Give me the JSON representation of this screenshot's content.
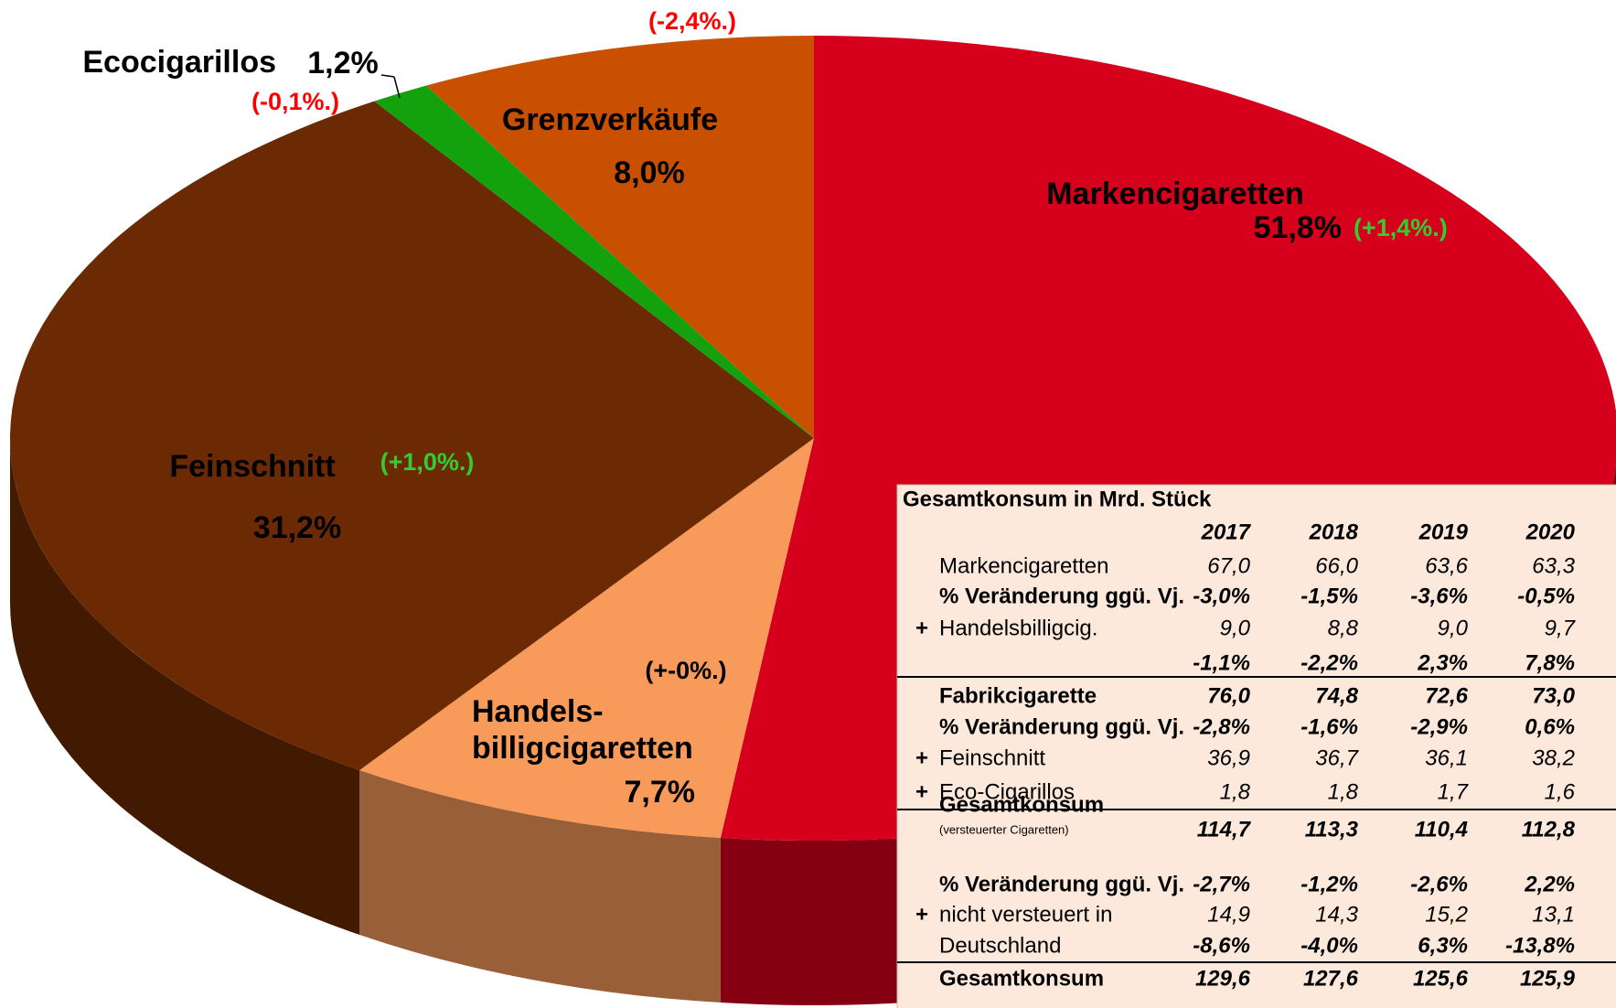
{
  "chart_data": {
    "type": "pie",
    "categories": [
      "Markencigaretten",
      "Handels-\nbilligcigaretten",
      "Feinschnitt",
      "Ecocigarillos",
      "Grenzverkäufe"
    ],
    "values": [
      51.8,
      7.7,
      31.2,
      1.2,
      8.0
    ],
    "value_labels": [
      "51,8%",
      "7,7%",
      "31,2%",
      "1,2%",
      "8,0%"
    ],
    "changes": [
      "(+1,4%.)",
      "(+-0%.)",
      "(+1,0%.)",
      "(-0,1%.)",
      "(-2,4%.)"
    ],
    "change_colors": [
      "#33cc33",
      "#000000",
      "#33cc33",
      "#ff0000",
      "#ff0000"
    ],
    "colors": [
      "#d6001c",
      "#f79a5a",
      "#6b2a03",
      "#13a10e",
      "#c85000"
    ]
  },
  "table": {
    "title": "Gesamtkonsum in Mrd. Stück",
    "years": [
      "2017",
      "2018",
      "2019",
      "2020"
    ],
    "rows": [
      {
        "label": "Markencigaretten",
        "values": [
          "67,0",
          "66,0",
          "63,6",
          "63,3"
        ]
      },
      {
        "label": "% Veränderung ggü. Vj.",
        "caption": true,
        "pct": true,
        "values": [
          "-3,0%",
          "-1,5%",
          "-3,6%",
          "-0,5%"
        ]
      },
      {
        "prefix": "+",
        "label": "Handelsbilligcig.",
        "values": [
          "9,0",
          "8,8",
          "9,0",
          "9,7"
        ]
      },
      {
        "pct": true,
        "values": [
          "-1,1%",
          "-2,2%",
          "2,3%",
          "7,8%"
        ]
      },
      {
        "label": "Fabrikcigarette",
        "bold": true,
        "rule_above": true,
        "values": [
          "76,0",
          "74,8",
          "72,6",
          "73,0"
        ]
      },
      {
        "label": "% Veränderung ggü. Vj.",
        "caption": true,
        "pct": true,
        "values": [
          "-2,8%",
          "-1,6%",
          "-2,9%",
          "0,6%"
        ]
      },
      {
        "prefix": "+",
        "label": "Feinschnitt",
        "values": [
          "36,9",
          "36,7",
          "36,1",
          "38,2"
        ]
      },
      {
        "prefix": "+",
        "label": "Eco-Cigarillos",
        "values": [
          "1,8",
          "1,8",
          "1,7",
          "1,6"
        ]
      },
      {
        "label": "Gesamtkonsum",
        "note": "(versteuerter Cigaretten)",
        "bold": true,
        "rule_above": true,
        "values": [
          "114,7",
          "113,3",
          "110,4",
          "112,8"
        ]
      },
      {
        "label": "% Veränderung ggü. Vj.",
        "caption": true,
        "pct": true,
        "values": [
          "-2,7%",
          "-1,2%",
          "-2,6%",
          "2,2%"
        ]
      },
      {
        "prefix": "+",
        "label": "nicht versteuert in",
        "values": [
          "14,9",
          "14,3",
          "15,2",
          "13,1"
        ]
      },
      {
        "label": "Deutschland",
        "pct": true,
        "values": [
          "-8,6%",
          "-4,0%",
          "6,3%",
          "-13,8%"
        ]
      },
      {
        "label": "Gesamtkonsum",
        "bold": true,
        "rule_above": true,
        "values": [
          "129,6",
          "127,6",
          "125,6",
          "125,9"
        ]
      }
    ]
  }
}
